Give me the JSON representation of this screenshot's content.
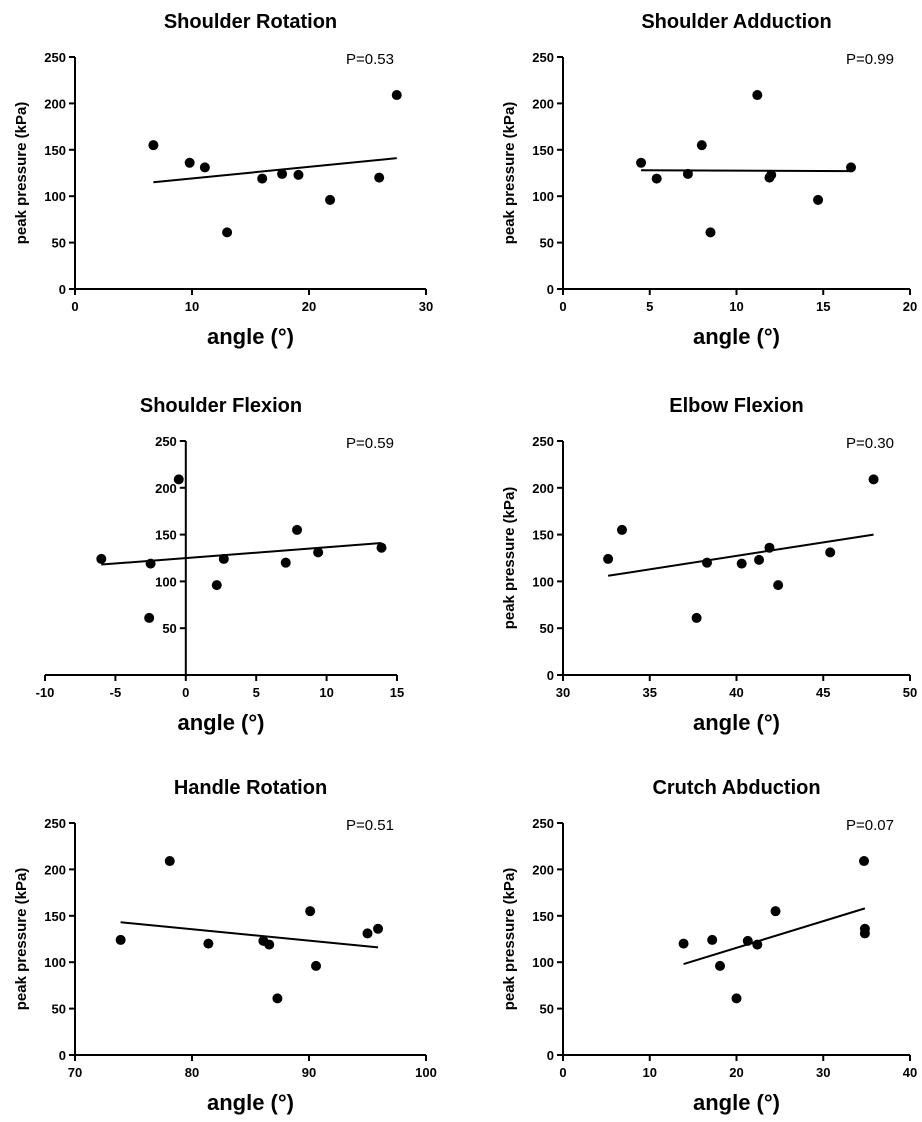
{
  "chart_data": [
    {
      "type": "scatter",
      "title": "Shoulder Rotation",
      "xlabel": "angle (°)",
      "ylabel": "peak pressure (kPa)",
      "annotation": "P=0.53",
      "xlim": [
        0,
        30
      ],
      "ylim": [
        0,
        250
      ],
      "xticks": [
        "0",
        "10",
        "20",
        "30"
      ],
      "yticks": [
        "0",
        "50",
        "100",
        "150",
        "200",
        "250"
      ],
      "points": [
        [
          6.7,
          155
        ],
        [
          9.8,
          136
        ],
        [
          11.1,
          131
        ],
        [
          13.0,
          61
        ],
        [
          16.0,
          119
        ],
        [
          17.7,
          124
        ],
        [
          19.1,
          123
        ],
        [
          21.8,
          96
        ],
        [
          26.0,
          120
        ],
        [
          27.5,
          209
        ]
      ],
      "fit": [
        [
          6.7,
          115
        ],
        [
          27.5,
          141
        ]
      ]
    },
    {
      "type": "scatter",
      "title": "Shoulder Adduction",
      "xlabel": "angle (°)",
      "ylabel": "peak pressure (kPa)",
      "annotation": "P=0.99",
      "xlim": [
        0,
        20
      ],
      "ylim": [
        0,
        250
      ],
      "xticks": [
        "0",
        "5",
        "10",
        "15",
        "20"
      ],
      "yticks": [
        "0",
        "50",
        "100",
        "150",
        "200",
        "250"
      ],
      "points": [
        [
          4.5,
          136
        ],
        [
          5.4,
          119
        ],
        [
          7.2,
          124
        ],
        [
          8.0,
          155
        ],
        [
          8.5,
          61
        ],
        [
          11.2,
          209
        ],
        [
          11.9,
          120
        ],
        [
          12.0,
          123
        ],
        [
          14.7,
          96
        ],
        [
          16.6,
          131
        ]
      ],
      "fit": [
        [
          4.5,
          128
        ],
        [
          16.6,
          127
        ]
      ]
    },
    {
      "type": "scatter",
      "title": "Shoulder Flexion",
      "xlabel": "angle (°)",
      "ylabel": "",
      "annotation": "P=0.59",
      "axis_through_zero": true,
      "xlim": [
        -10,
        15
      ],
      "ylim": [
        0,
        250
      ],
      "xticks": [
        "-10",
        "-5",
        "0",
        "5",
        "10",
        "15"
      ],
      "yticks": [
        "50",
        "100",
        "150",
        "200",
        "250"
      ],
      "points": [
        [
          -6.0,
          124
        ],
        [
          -2.5,
          119
        ],
        [
          -2.6,
          61
        ],
        [
          -0.5,
          209
        ],
        [
          2.2,
          96
        ],
        [
          2.7,
          124
        ],
        [
          7.1,
          120
        ],
        [
          7.9,
          155
        ],
        [
          9.4,
          131
        ],
        [
          13.9,
          136
        ]
      ],
      "fit": [
        [
          -6.0,
          118
        ],
        [
          13.9,
          141
        ]
      ]
    },
    {
      "type": "scatter",
      "title": "Elbow Flexion",
      "xlabel": "angle (°)",
      "ylabel": "peak pressure (kPa)",
      "annotation": "P=0.30",
      "xlim": [
        30,
        50
      ],
      "ylim": [
        0,
        250
      ],
      "xticks": [
        "30",
        "35",
        "40",
        "45",
        "50"
      ],
      "yticks": [
        "0",
        "50",
        "100",
        "150",
        "200",
        "250"
      ],
      "points": [
        [
          32.6,
          124
        ],
        [
          33.4,
          155
        ],
        [
          37.7,
          61
        ],
        [
          38.3,
          120
        ],
        [
          40.3,
          119
        ],
        [
          41.3,
          123
        ],
        [
          41.9,
          136
        ],
        [
          42.4,
          96
        ],
        [
          45.4,
          131
        ],
        [
          47.9,
          209
        ]
      ],
      "fit": [
        [
          32.6,
          106
        ],
        [
          47.9,
          150
        ]
      ]
    },
    {
      "type": "scatter",
      "title": "Handle Rotation",
      "xlabel": "angle (°)",
      "ylabel": "peak pressure (kPa)",
      "annotation": "P=0.51",
      "xlim": [
        70,
        100
      ],
      "ylim": [
        0,
        250
      ],
      "xticks": [
        "70",
        "80",
        "90",
        "100"
      ],
      "yticks": [
        "0",
        "50",
        "100",
        "150",
        "200",
        "250"
      ],
      "points": [
        [
          73.9,
          124
        ],
        [
          78.1,
          209
        ],
        [
          81.4,
          120
        ],
        [
          86.1,
          123
        ],
        [
          86.6,
          119
        ],
        [
          87.3,
          61
        ],
        [
          90.1,
          155
        ],
        [
          90.6,
          96
        ],
        [
          95.0,
          131
        ],
        [
          95.9,
          136
        ]
      ],
      "fit": [
        [
          73.9,
          143
        ],
        [
          95.9,
          116
        ]
      ]
    },
    {
      "type": "scatter",
      "title": "Crutch Abduction",
      "xlabel": "angle (°)",
      "ylabel": "peak pressure (kPa)",
      "annotation": "P=0.07",
      "xlim": [
        0,
        40
      ],
      "ylim": [
        0,
        250
      ],
      "xticks": [
        "0",
        "10",
        "20",
        "30",
        "40"
      ],
      "yticks": [
        "0",
        "50",
        "100",
        "150",
        "200",
        "250"
      ],
      "points": [
        [
          13.9,
          120
        ],
        [
          17.2,
          124
        ],
        [
          18.1,
          96
        ],
        [
          20.0,
          61
        ],
        [
          21.3,
          123
        ],
        [
          22.4,
          119
        ],
        [
          24.5,
          155
        ],
        [
          34.7,
          209
        ],
        [
          34.8,
          136
        ],
        [
          34.8,
          131
        ]
      ],
      "fit": [
        [
          13.9,
          98
        ],
        [
          34.8,
          158
        ]
      ]
    }
  ]
}
